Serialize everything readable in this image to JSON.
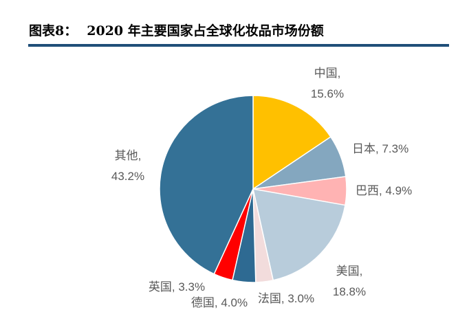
{
  "figure": {
    "label": "图表8：",
    "title": "2020 年主要国家占全球化妆品市场份额"
  },
  "chart_data": {
    "type": "pie",
    "title": "",
    "start_angle_deg": 0,
    "direction": "clockwise",
    "slices": [
      {
        "label": "中国",
        "value": 15.6,
        "value_text": "15.6%",
        "color": "#FFC000"
      },
      {
        "label": "日本",
        "value": 7.3,
        "value_text": "7.3%",
        "color": "#84A7BF"
      },
      {
        "label": "巴西",
        "value": 4.9,
        "value_text": "4.9%",
        "color": "#FFB3B3"
      },
      {
        "label": "美国",
        "value": 18.8,
        "value_text": "18.8%",
        "color": "#B8CCDB"
      },
      {
        "label": "法国",
        "value": 3.0,
        "value_text": "3.0%",
        "color": "#F2DCDC"
      },
      {
        "label": "德国",
        "value": 4.0,
        "value_text": "4.0%",
        "color": "#2E6A92"
      },
      {
        "label": "英国",
        "value": 3.3,
        "value_text": "3.3%",
        "color": "#FF0000"
      },
      {
        "label": "其他",
        "value": 43.2,
        "value_text": "43.2%",
        "color": "#347196"
      }
    ]
  }
}
